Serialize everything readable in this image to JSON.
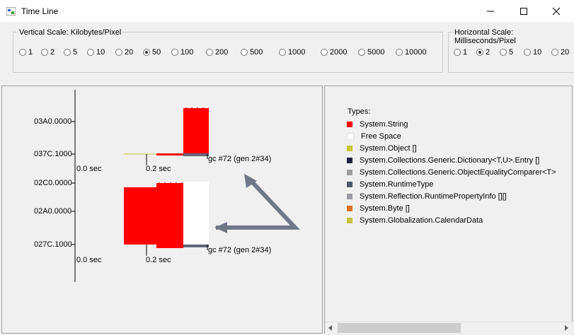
{
  "window": {
    "title": "Time Line"
  },
  "vertical_scale": {
    "label": "Vertical Scale: Kilobytes/Pixel",
    "options": [
      "1",
      "2",
      "5",
      "10",
      "20",
      "50",
      "100",
      "200",
      "500",
      "1000",
      "2000",
      "5000",
      "10000"
    ],
    "selected": "50"
  },
  "horizontal_scale": {
    "label": "Horizontal Scale: Milliseconds/Pixel",
    "options": [
      "1",
      "2",
      "5",
      "10",
      "20"
    ],
    "selected": "2"
  },
  "timeline": {
    "top": {
      "labels": [
        "03A0.0000",
        "037C.1000"
      ],
      "time_labels": [
        "0.0 sec",
        "0.2 sec"
      ],
      "gc_label": "gc #72 (gen 2#34)"
    },
    "bottom": {
      "labels": [
        "02C0.0000",
        "02A0.0000",
        "027C.1000"
      ],
      "time_labels": [
        "0.0 sec",
        "0.2 sec"
      ],
      "gc_label": "gc #72 (gen 2#34)"
    }
  },
  "legend": {
    "title": "Types:",
    "items": [
      {
        "name": "System.String",
        "color": "#ff0000"
      },
      {
        "name": "Free Space",
        "color": "#ffffff"
      },
      {
        "name": "System.Object []",
        "color": "#c8c832"
      },
      {
        "name": "System.Collections.Generic.Dictionary<T,U>.Entry []",
        "color": "#202040"
      },
      {
        "name": "System.Collections.Generic.ObjectEqualityComparer<T>",
        "color": "#a0a0a0"
      },
      {
        "name": "System.RuntimeType",
        "color": "#505868"
      },
      {
        "name": "System.Reflection.RuntimePropertyInfo [][]",
        "color": "#9c9ca4"
      },
      {
        "name": "System.Byte []",
        "color": "#e07020"
      },
      {
        "name": "System.Globalization.CalendarData",
        "color": "#c8c040"
      }
    ]
  }
}
